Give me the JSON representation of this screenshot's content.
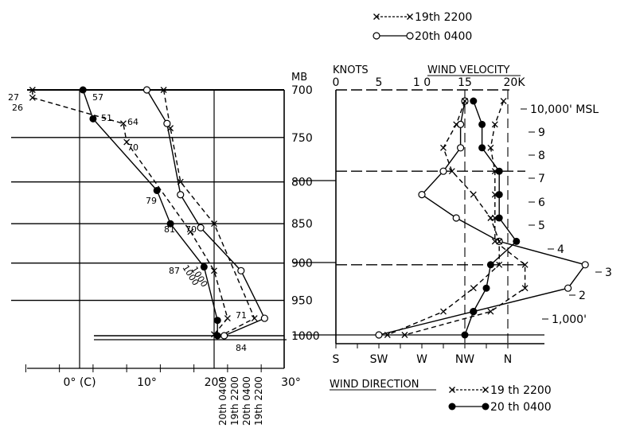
{
  "chart_data": [
    {
      "type": "line",
      "panel": "temperature",
      "xlabel": "0° (C)",
      "ylabel": "MB",
      "y_scale": "log-pressure, inverted",
      "ylim": [
        1000,
        700
      ],
      "xlim": [
        -8,
        30
      ],
      "x_ticks": [
        {
          "value": 0,
          "label": "0° (C)"
        },
        {
          "value": 10,
          "label": "10°"
        },
        {
          "value": 20,
          "label": "20°"
        },
        {
          "value": 30,
          "label": "30°"
        }
      ],
      "y_ticks": [
        {
          "value": 700,
          "label": "700"
        },
        {
          "value": 750,
          "label": "750"
        },
        {
          "value": 800,
          "label": "800"
        },
        {
          "value": 850,
          "label": "850"
        },
        {
          "value": 900,
          "label": "900"
        },
        {
          "value": 950,
          "label": "950"
        },
        {
          "value": 1000,
          "label": "1000"
        }
      ],
      "series": [
        {
          "name": "19th 2200",
          "kind": "temperature",
          "style": "dashed",
          "marker": "x",
          "points": [
            [
              12.5,
              700
            ],
            [
              13.5,
              740
            ],
            [
              15,
              800
            ],
            [
              20,
              850
            ],
            [
              26,
              975
            ],
            [
              21,
              1000
            ]
          ]
        },
        {
          "name": "20th 0400",
          "kind": "temperature",
          "style": "solid",
          "marker": "open-circle",
          "points": [
            [
              10,
              700
            ],
            [
              13,
              735
            ],
            [
              15,
              815
            ],
            [
              18,
              855
            ],
            [
              24,
              910
            ],
            [
              27.5,
              975
            ],
            [
              21.5,
              1000
            ]
          ]
        },
        {
          "name": "19th 2200",
          "kind": "dew point",
          "style": "dashed",
          "marker": "x",
          "points": [
            [
              -7,
              700
            ],
            [
              -7,
              708
            ],
            [
              6.5,
              735
            ],
            [
              7,
              755
            ],
            [
              16.5,
              860
            ],
            [
              20,
              910
            ],
            [
              22,
              975
            ],
            [
              20,
              998
            ]
          ]
        },
        {
          "name": "20th 0400",
          "kind": "dew point",
          "style": "solid",
          "marker": "filled-circle",
          "points": [
            [
              0.5,
              700
            ],
            [
              2,
              730
            ],
            [
              11.5,
              810
            ],
            [
              13.5,
              850
            ],
            [
              18.5,
              905
            ],
            [
              20.5,
              978
            ],
            [
              20.5,
              1000
            ]
          ]
        }
      ],
      "annotations": [
        {
          "text": "27",
          "attach": "19th 2200 dew point 700"
        },
        {
          "text": "26",
          "attach": "19th 2200 dew point 708"
        },
        {
          "text": "57",
          "attach": "20th 0400 dew point 700"
        },
        {
          "text": "51",
          "attach": "20th 0400 dew point 730"
        },
        {
          "text": "64",
          "attach": "19th 2200 dew point 735"
        },
        {
          "text": "70",
          "attach": "19th 2200 dew point 755"
        },
        {
          "text": "79",
          "attach": "20th 0400 dew point 810"
        },
        {
          "text": "81",
          "attach": "20th 0400 dew point 850"
        },
        {
          "text": "70",
          "attach": "19th 2200 dew point 860"
        },
        {
          "text": "87",
          "attach": "20th 0400 dew point 905"
        },
        {
          "text": "1000",
          "attach": "rotated 1"
        },
        {
          "text": "1000",
          "attach": "rotated 2"
        },
        {
          "text": "71",
          "attach": "20th 0400 dew point 978"
        },
        {
          "text": "84",
          "attach": "surface"
        }
      ],
      "bottom_labels": [
        "20th 0400",
        "19th 2200",
        "20th 0400",
        "19th 2200"
      ]
    },
    {
      "type": "line",
      "panel": "wind",
      "title": "WIND VELOCITY",
      "xlabel_top": "KNOTS",
      "xlabel_bottom": "WIND DIRECTION",
      "xlim": [
        0,
        20
      ],
      "x_ticks_top": [
        {
          "value": 0,
          "label": "0"
        },
        {
          "value": 5,
          "label": "5"
        },
        {
          "value": 10,
          "label": "1 0"
        },
        {
          "value": 15,
          "label": "15"
        },
        {
          "value": 20,
          "label": "20K"
        }
      ],
      "x_ticks_bottom": [
        {
          "value": 0,
          "label": "S"
        },
        {
          "value": 5,
          "label": "SW"
        },
        {
          "value": 10,
          "label": "W"
        },
        {
          "value": 15,
          "label": "NW"
        },
        {
          "value": 20,
          "label": "N"
        }
      ],
      "altitude_labels": [
        "10,000' MSL",
        "9",
        "8",
        "7",
        "6",
        "5",
        "4",
        "3",
        "2",
        "1,000'"
      ],
      "series": [
        {
          "name": "19th 2200",
          "kind": "speed",
          "style": "dashed",
          "marker": "x",
          "altitudes": [
            10,
            9,
            8,
            7,
            6,
            5,
            4,
            3,
            2,
            1,
            0
          ],
          "values": [
            19.5,
            18.5,
            18,
            18.5,
            18.5,
            18.5,
            18.5,
            22,
            22,
            18,
            8
          ]
        },
        {
          "name": "20th 0400",
          "kind": "speed",
          "style": "solid",
          "marker": "open-circle",
          "altitudes": [
            10,
            9,
            8,
            7,
            6,
            5,
            4,
            3,
            2,
            1,
            0
          ],
          "values": [
            15,
            14.5,
            14.5,
            12.5,
            10,
            14,
            19,
            29,
            27,
            16,
            5
          ]
        },
        {
          "name": "19th 2200",
          "kind": "direction",
          "style": "dashed",
          "marker": "x",
          "altitudes": [
            10,
            9,
            8,
            7,
            6,
            5,
            4,
            3,
            2,
            1,
            0
          ],
          "values": [
            15,
            14,
            12.5,
            13.5,
            16,
            18,
            19,
            19,
            16,
            12.5,
            6
          ]
        },
        {
          "name": "20th 0400",
          "kind": "direction",
          "style": "solid",
          "marker": "filled-circle",
          "altitudes": [
            10,
            9,
            8,
            7,
            6,
            5,
            4,
            3,
            2,
            1,
            0
          ],
          "values": [
            16,
            17,
            17,
            19,
            19,
            19,
            21,
            18,
            17.5,
            16,
            15
          ]
        }
      ]
    }
  ],
  "legend_top": [
    {
      "label": "19th 2200",
      "marker": "x",
      "style": "dashed"
    },
    {
      "label": "20th 0400",
      "marker": "open-circle",
      "style": "solid"
    }
  ],
  "legend_bottom": [
    {
      "label": "19 th 2200",
      "marker": "x",
      "style": "dashed"
    },
    {
      "label": "20 th 0400",
      "marker": "filled-circle",
      "style": "solid"
    }
  ]
}
